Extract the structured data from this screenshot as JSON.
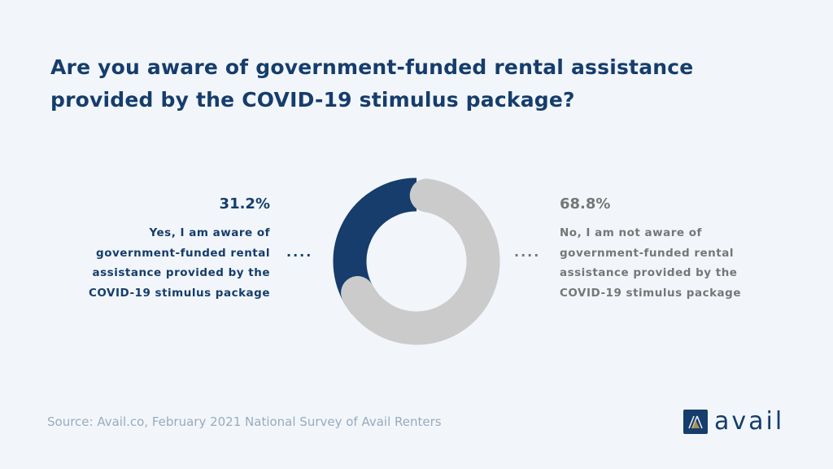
{
  "chart_data": {
    "type": "pie",
    "variant": "donut",
    "title": "Are you aware of government-funded rental assistance provided by the COVID-19 stimulus package?",
    "slices": [
      {
        "label": "Yes, I am aware of government-funded rental assistance provided by the COVID-19 stimulus package",
        "value": 31.2,
        "value_label": "31.2%",
        "color": "#163d6b"
      },
      {
        "label": "No, I am not aware of government-funded rental assistance provided by the COVID-19 stimulus package",
        "value": 68.8,
        "value_label": "68.8%",
        "color": "#cbcbcb"
      }
    ]
  },
  "labels": {
    "yes_lines": [
      "Yes, I am aware of",
      "government-funded rental",
      "assistance provided by the",
      "COVID-19 stimulus package"
    ],
    "no_lines": [
      "No, I am not aware of",
      "government-funded rental",
      "assistance provided by the",
      "COVID-19 stimulus package"
    ],
    "dots": "...."
  },
  "source": "Source: Avail.co, February 2021 National Survey of Avail Renters",
  "logo": {
    "text": "avail",
    "color": "#163d6b"
  }
}
